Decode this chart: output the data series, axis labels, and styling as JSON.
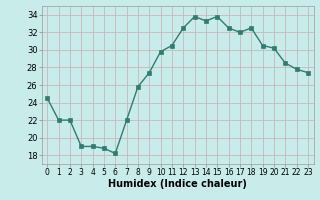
{
  "x": [
    0,
    1,
    2,
    3,
    4,
    5,
    6,
    7,
    8,
    9,
    10,
    11,
    12,
    13,
    14,
    15,
    16,
    17,
    18,
    19,
    20,
    21,
    22,
    23
  ],
  "y": [
    24.5,
    22.0,
    22.0,
    19.0,
    19.0,
    18.8,
    18.2,
    22.0,
    25.8,
    27.4,
    29.8,
    30.5,
    32.5,
    33.8,
    33.3,
    33.8,
    32.5,
    32.0,
    32.5,
    30.5,
    30.2,
    28.5,
    27.8,
    27.4
  ],
  "line_color": "#2e7d6e",
  "marker": "s",
  "markersize": 2.5,
  "linewidth": 1.0,
  "bg_color": "#c8ecea",
  "grid_color": "#c8b8b8",
  "xlabel": "Humidex (Indice chaleur)",
  "xlabel_fontsize": 7,
  "ylabel_ticks": [
    18,
    20,
    22,
    24,
    26,
    28,
    30,
    32,
    34
  ],
  "xtick_labels": [
    "0",
    "1",
    "2",
    "3",
    "4",
    "5",
    "6",
    "7",
    "8",
    "9",
    "10",
    "11",
    "12",
    "13",
    "14",
    "15",
    "16",
    "17",
    "18",
    "19",
    "20",
    "21",
    "22",
    "23"
  ],
  "xticks": [
    0,
    1,
    2,
    3,
    4,
    5,
    6,
    7,
    8,
    9,
    10,
    11,
    12,
    13,
    14,
    15,
    16,
    17,
    18,
    19,
    20,
    21,
    22,
    23
  ],
  "xlim": [
    -0.5,
    23.5
  ],
  "ylim": [
    17.0,
    35.0
  ],
  "tick_fontsize": 5.5,
  "ytick_fontsize": 6.0
}
